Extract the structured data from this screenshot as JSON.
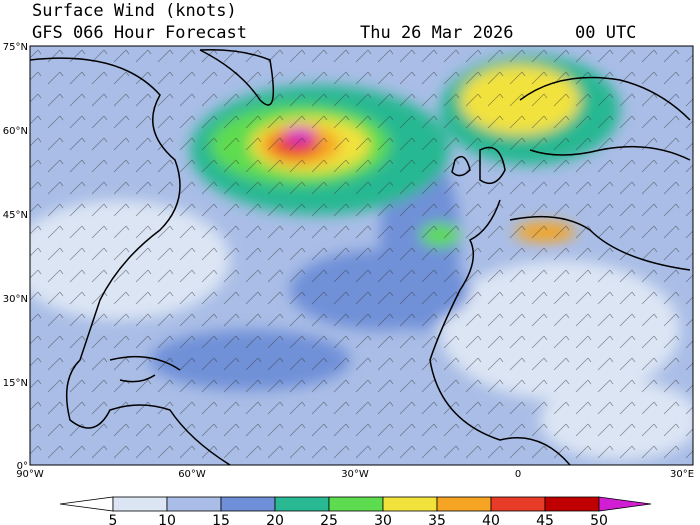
{
  "header": {
    "title": "Surface Wind (knots)",
    "subtitle": "GFS 066 Hour Forecast",
    "date": "Thu 26 Mar 2026",
    "time": "00 UTC"
  },
  "map": {
    "lat_labels": [
      "75°N",
      "60°N",
      "45°N",
      "30°N",
      "15°N",
      "0°"
    ],
    "lon_labels": [
      "90°W",
      "60°W",
      "30°W",
      "0",
      "30°E"
    ]
  },
  "colorbar": {
    "ticks": [
      5,
      10,
      15,
      20,
      25,
      30,
      35,
      40,
      45,
      50
    ],
    "colors": [
      "#ffffff",
      "#dbe5f4",
      "#a9bde6",
      "#6f90d8",
      "#28b892",
      "#5edc50",
      "#f2e23c",
      "#f5a423",
      "#e83c28",
      "#c00000",
      "#d21ed2"
    ]
  }
}
